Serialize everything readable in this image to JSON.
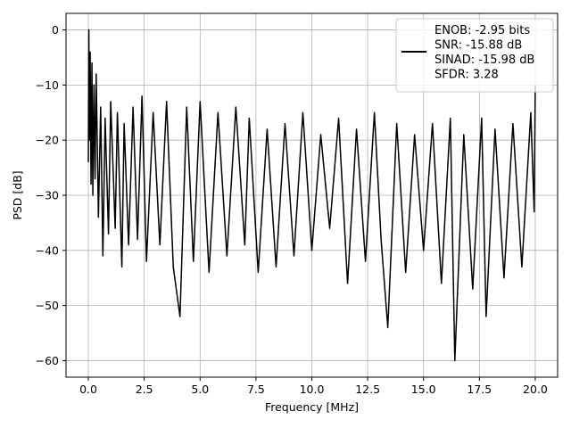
{
  "chart_data": {
    "type": "line",
    "title": "",
    "xlabel": "Frequency [MHz]",
    "ylabel": "PSD [dB]",
    "xlim": [
      -1.0,
      21.0
    ],
    "ylim": [
      -63.0,
      3.0
    ],
    "xticks": [
      0.0,
      2.5,
      5.0,
      7.5,
      10.0,
      12.5,
      15.0,
      17.5,
      20.0
    ],
    "xtick_labels": [
      "0.0",
      "2.5",
      "5.0",
      "7.5",
      "10.0",
      "12.5",
      "15.0",
      "17.5",
      "20.0"
    ],
    "yticks": [
      0,
      -10,
      -20,
      -30,
      -40,
      -50,
      -60
    ],
    "ytick_labels": [
      "0",
      "−10",
      "−20",
      "−30",
      "−40",
      "−50",
      "−60"
    ],
    "grid": true,
    "legend_placement": "top-right",
    "series": [
      {
        "name": "",
        "color": "#000000",
        "x": [
          0.0,
          0.02,
          0.05,
          0.08,
          0.12,
          0.16,
          0.2,
          0.25,
          0.3,
          0.35,
          0.45,
          0.55,
          0.65,
          0.75,
          0.9,
          1.0,
          1.2,
          1.3,
          1.5,
          1.6,
          1.8,
          2.0,
          2.2,
          2.4,
          2.6,
          2.9,
          3.2,
          3.5,
          3.8,
          4.1,
          4.4,
          4.7,
          5.0,
          5.4,
          5.8,
          6.2,
          6.6,
          7.0,
          7.2,
          7.6,
          8.0,
          8.4,
          8.8,
          9.2,
          9.6,
          10.0,
          10.4,
          10.8,
          11.2,
          11.6,
          12.0,
          12.4,
          12.8,
          13.1,
          13.4,
          13.8,
          14.2,
          14.6,
          15.0,
          15.4,
          15.8,
          16.2,
          16.4,
          16.8,
          17.2,
          17.6,
          17.8,
          18.2,
          18.6,
          19.0,
          19.4,
          19.8,
          19.95,
          20.0
        ],
        "values": [
          -24,
          0,
          -20,
          -4,
          -28,
          -6,
          -30,
          -10,
          -27,
          -8,
          -34,
          -14,
          -41,
          -16,
          -37,
          -13,
          -36,
          -15,
          -43,
          -17,
          -39,
          -14,
          -38,
          -12,
          -42,
          -15,
          -39,
          -13,
          -43,
          -52,
          -14,
          -42,
          -13,
          -44,
          -15,
          -41,
          -14,
          -39,
          -16,
          -44,
          -18,
          -43,
          -17,
          -41,
          -15,
          -40,
          -19,
          -36,
          -16,
          -46,
          -18,
          -42,
          -15,
          -38,
          -54,
          -17,
          -44,
          -19,
          -40,
          -17,
          -46,
          -16,
          -60,
          -19,
          -47,
          -16,
          -52,
          -18,
          -45,
          -17,
          -43,
          -15,
          -33,
          -10
        ]
      }
    ],
    "legend": [
      {
        "label": "ENOB: -2.95 bits\nSNR: -15.88 dB\nSINAD: -15.98 dB\nSFDR: 3.28",
        "lines": [
          "ENOB: -2.95 bits",
          "SNR: -15.88 dB",
          "SINAD: -15.98 dB",
          "SFDR: 3.28"
        ]
      }
    ]
  }
}
